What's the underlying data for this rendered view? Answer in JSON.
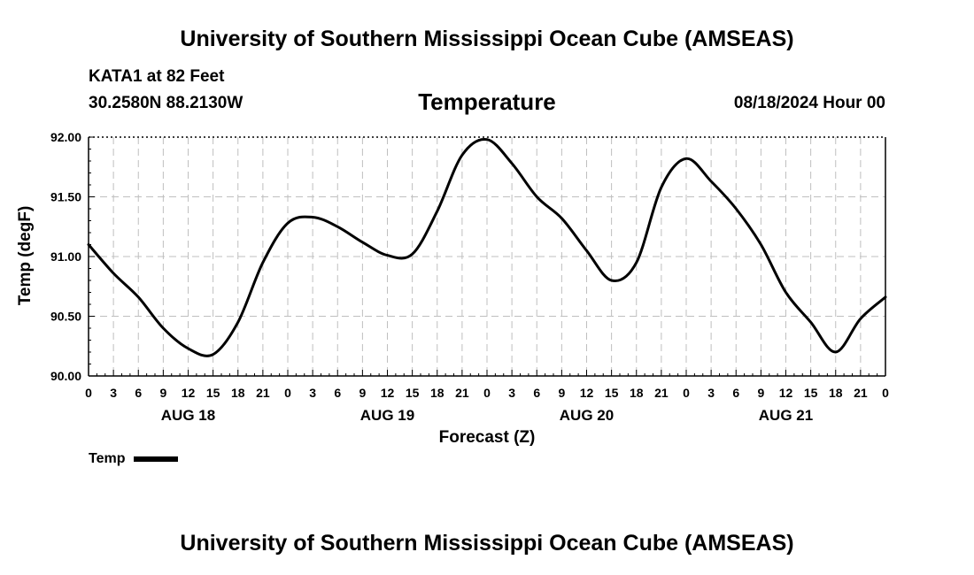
{
  "header": {
    "title_top": "University of Southern Mississippi Ocean Cube (AMSEAS)",
    "title_bottom": "University of Southern Mississippi Ocean Cube (AMSEAS)",
    "station": "KATA1 at 82 Feet",
    "coords": "30.2580N  88.2130W",
    "plot_title": "Temperature",
    "datetime": "08/18/2024 Hour 00"
  },
  "legend": {
    "label": "Temp"
  },
  "colors": {
    "line": "#000000",
    "grid": "#bfbfbf"
  },
  "chart_data": {
    "type": "line",
    "title": "Temperature",
    "xlabel": "Forecast (Z)",
    "ylabel": "Temp (degF)",
    "xlim": [
      0,
      96
    ],
    "ylim": [
      90.0,
      92.0
    ],
    "yticks": [
      "90.00",
      "90.50",
      "91.00",
      "91.50",
      "92.00"
    ],
    "xtick_labels": [
      "0",
      "3",
      "6",
      "9",
      "12",
      "15",
      "18",
      "21",
      "0",
      "3",
      "6",
      "9",
      "12",
      "15",
      "18",
      "21",
      "0",
      "3",
      "6",
      "9",
      "12",
      "15",
      "18",
      "21",
      "0",
      "3",
      "6",
      "9",
      "12",
      "15",
      "18",
      "21",
      "0"
    ],
    "day_labels": [
      {
        "label": "AUG 18",
        "hour": 12
      },
      {
        "label": "AUG 19",
        "hour": 36
      },
      {
        "label": "AUG 20",
        "hour": 60
      },
      {
        "label": "AUG 21",
        "hour": 84
      }
    ],
    "series": [
      {
        "name": "Temp",
        "x": [
          0,
          3,
          6,
          9,
          12,
          15,
          18,
          21,
          24,
          27,
          30,
          33,
          36,
          39,
          42,
          45,
          48,
          51,
          54,
          57,
          60,
          63,
          66,
          69,
          72,
          75,
          78,
          81,
          84,
          87,
          90,
          93,
          96
        ],
        "values": [
          91.1,
          90.86,
          90.66,
          90.4,
          90.23,
          90.18,
          90.45,
          90.95,
          91.28,
          91.33,
          91.25,
          91.12,
          91.01,
          91.02,
          91.38,
          91.85,
          91.98,
          91.78,
          91.5,
          91.32,
          91.05,
          90.8,
          90.95,
          91.58,
          91.82,
          91.63,
          91.4,
          91.1,
          90.7,
          90.45,
          90.2,
          90.48,
          90.66
        ]
      }
    ]
  }
}
